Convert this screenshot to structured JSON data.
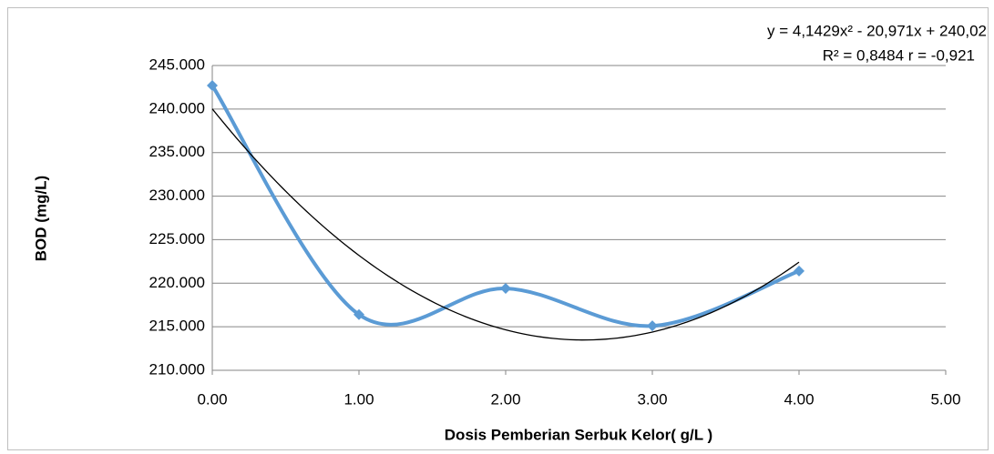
{
  "chart_data": {
    "type": "scatter",
    "x_label": "Dosis Pemberian Serbuk Kelor( g/L )",
    "y_label": "BOD  (mg/L)",
    "series": [
      {
        "name": "BOD",
        "color": "#5b9bd5",
        "x": [
          0,
          1,
          2,
          3,
          4
        ],
        "values": [
          242.7,
          216.4,
          219.4,
          215.1,
          221.4
        ]
      }
    ],
    "smooth": true,
    "trendline": {
      "type": "polynomial",
      "coefficients": [
        4.1429,
        -20.971,
        240.02
      ],
      "color": "#000000",
      "equation": "y = 4,1429x² - 20,971x + 240,02",
      "stats": "R² = 0,8484 r = -0,921"
    },
    "xlim": [
      0,
      5
    ],
    "xticks": [
      {
        "value": 0,
        "label": "0.00"
      },
      {
        "value": 1,
        "label": "1.00"
      },
      {
        "value": 2,
        "label": "2.00"
      },
      {
        "value": 3,
        "label": "3.00"
      },
      {
        "value": 4,
        "label": "4.00"
      },
      {
        "value": 5,
        "label": "5.00"
      }
    ],
    "ylim": [
      210,
      245
    ],
    "yticks": [
      {
        "value": 210,
        "label": "210.000"
      },
      {
        "value": 215,
        "label": "215.000"
      },
      {
        "value": 220,
        "label": "220.000"
      },
      {
        "value": 225,
        "label": "225.000"
      },
      {
        "value": 230,
        "label": "230.000"
      },
      {
        "value": 235,
        "label": "235.000"
      },
      {
        "value": 240,
        "label": "240.000"
      },
      {
        "value": 245,
        "label": "245.000"
      }
    ],
    "grid": true
  }
}
